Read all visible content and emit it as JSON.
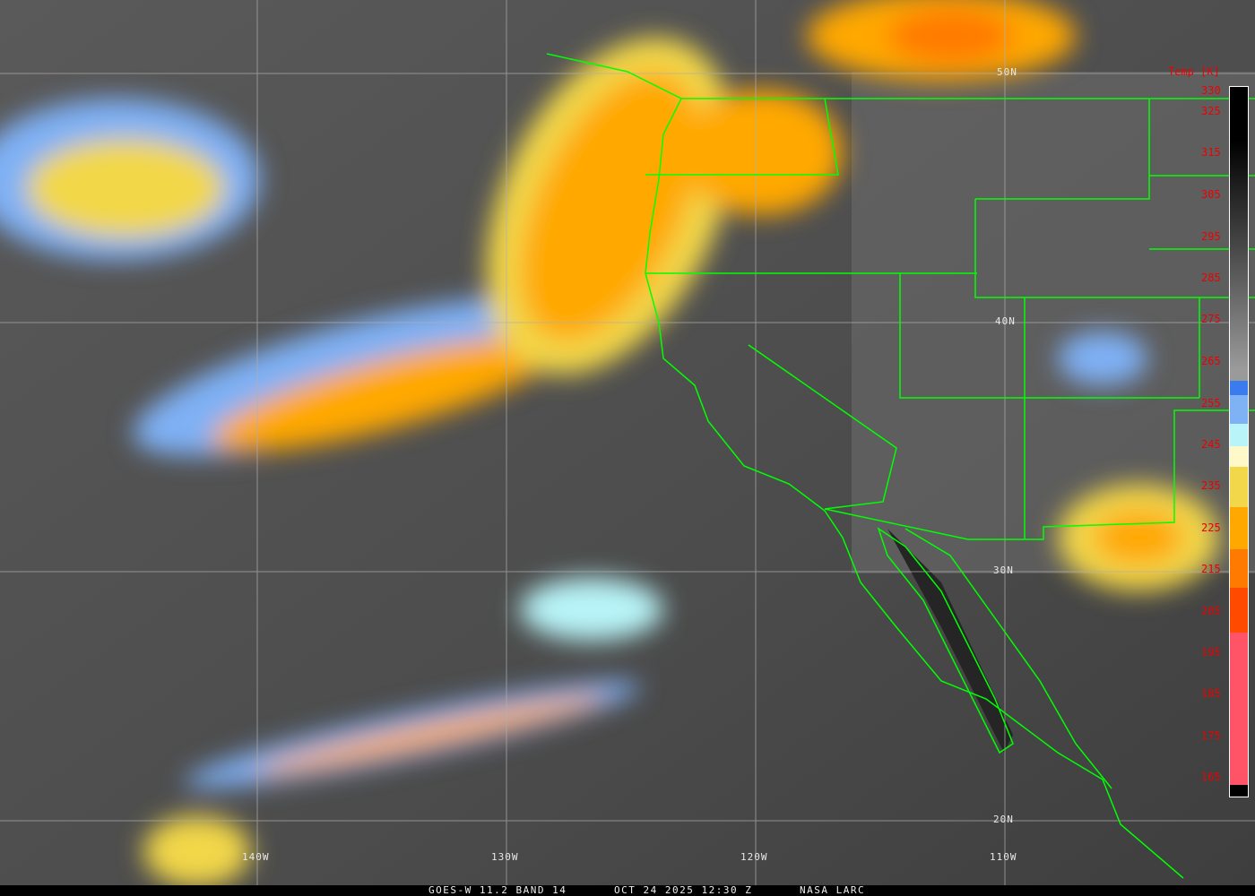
{
  "caption": {
    "satellite": "GOES-W 11.2 BAND 14",
    "datetime": "OCT 24 2025 12:30 Z",
    "source": "NASA LARC"
  },
  "graticule": {
    "longitudes": [
      "140W",
      "130W",
      "120W",
      "110W"
    ],
    "latitudes": [
      "50N",
      "40N",
      "30N",
      "20N"
    ]
  },
  "colorbar": {
    "title": "Temp [K]",
    "ticks": [
      "330",
      "325",
      "315",
      "305",
      "295",
      "285",
      "275",
      "265",
      "255",
      "245",
      "235",
      "225",
      "215",
      "205",
      "195",
      "185",
      "175",
      "165"
    ],
    "colors": {
      "warm": "#000000",
      "mid": "#9a9a9a",
      "blue": "#3a7cf0",
      "lightblue": "#7fb1f5",
      "cyan": "#b8f4f8",
      "cream": "#fff8c8",
      "yellow": "#f2d74a",
      "orange": "#ffa800",
      "darkorange": "#ff7a00",
      "redorange": "#ff4a00",
      "pink": "#ff5468"
    }
  },
  "overlay_colors": {
    "coastline": "#00ff00",
    "grid": "#b0b0b0",
    "tick_label": "#ff0000"
  }
}
